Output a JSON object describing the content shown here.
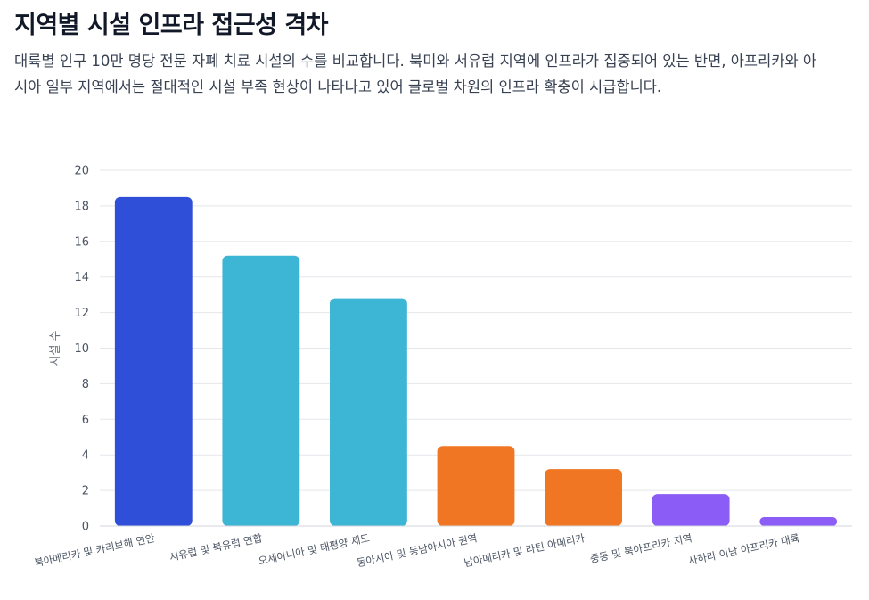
{
  "header": {
    "title": "지역별 시설 인프라 접근성 격차",
    "description": "대륙별 인구 10만 명당 전문 자폐 치료 시설의 수를 비교합니다. 북미와 서유럽 지역에 인프라가 집중되어 있는 반면, 아프리카와 아시아 일부 지역에서는 절대적인 시설 부족 현상이 나타나고 있어 글로벌 차원의 인프라 확충이 시급합니다."
  },
  "chart_data": {
    "type": "bar",
    "categories": [
      "북아메리카 및 카리브해 연안",
      "서유럽 및 북유럽 연합",
      "오세아니아 및 태평양 제도",
      "동아시아 및 동남아시아 권역",
      "남아메리카 및 라틴 아메리카",
      "중동 및 북아프리카 지역",
      "사하라 이남 아프리카 대륙"
    ],
    "values": [
      18.5,
      15.2,
      12.8,
      4.5,
      3.2,
      1.8,
      0.5
    ],
    "colors": [
      "#2f4fd8",
      "#3db5d4",
      "#3db5d4",
      "#f07624",
      "#f07624",
      "#8b5cf6",
      "#8b5cf6"
    ],
    "ylabel": "시설 수",
    "xlabel": "",
    "ylim": [
      0,
      20
    ],
    "yticks": [
      0,
      2,
      4,
      6,
      8,
      10,
      12,
      14,
      16,
      18,
      20
    ],
    "grid": true,
    "legend": "none"
  }
}
